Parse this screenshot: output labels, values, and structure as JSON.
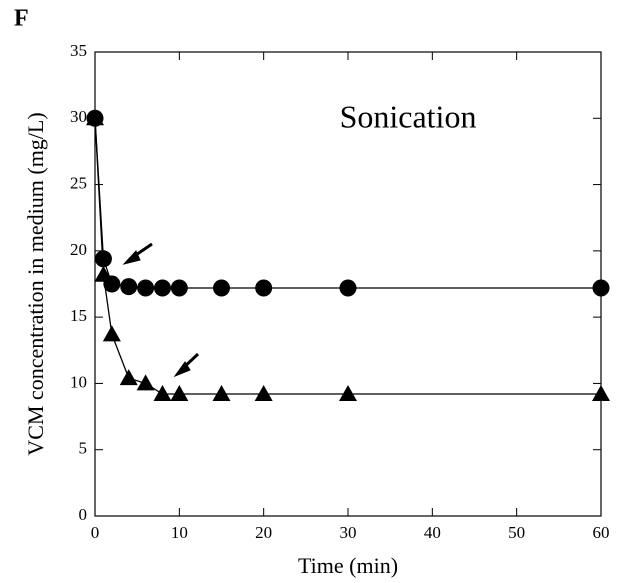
{
  "chart_data": {
    "type": "line",
    "panel_label": "F",
    "annotation": "Sonication",
    "x_label": "Time (min)",
    "y_label": "VCM concentration in medium (mg/L)",
    "xlim": [
      0,
      60
    ],
    "xticks": [
      0,
      10,
      20,
      30,
      40,
      50,
      60
    ],
    "ylim": [
      0,
      35
    ],
    "yticks": [
      0,
      5,
      10,
      15,
      20,
      25,
      30,
      35
    ],
    "series": [
      {
        "marker": "circle",
        "color": "#000000",
        "x": [
          0,
          1,
          2,
          4,
          6,
          8,
          10,
          15,
          20,
          30,
          60
        ],
        "values": [
          30,
          19.4,
          17.5,
          17.3,
          17.2,
          17.2,
          17.2,
          17.2,
          17.2,
          17.2,
          17.2
        ]
      },
      {
        "marker": "triangle",
        "color": "#000000",
        "x": [
          0,
          1,
          2,
          4,
          6,
          8,
          10,
          15,
          20,
          30,
          60
        ],
        "values": [
          30,
          18.2,
          13.7,
          10.4,
          10,
          9.2,
          9.2,
          9.2,
          9.2,
          9.2,
          9.2
        ]
      }
    ]
  }
}
